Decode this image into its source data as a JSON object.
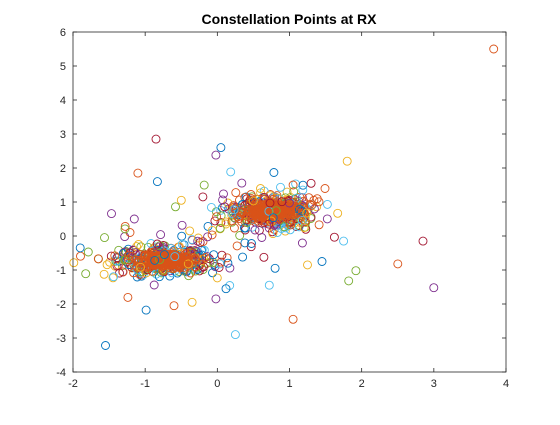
{
  "chart_data": {
    "type": "scatter",
    "title": "Constellation Points at RX",
    "xlabel": "",
    "ylabel": "",
    "xlim": [
      -2,
      4
    ],
    "ylim": [
      -4,
      6
    ],
    "xticks": [
      -2,
      -1,
      0,
      1,
      2,
      3,
      4
    ],
    "xtick_labels": [
      "-2",
      "-1",
      "0",
      "1",
      "2",
      "3",
      "4"
    ],
    "yticks": [
      -4,
      -3,
      -2,
      -1,
      0,
      1,
      2,
      3,
      4,
      5,
      6
    ],
    "ytick_labels": [
      "-4",
      "-3",
      "-2",
      "-1",
      "0",
      "1",
      "2",
      "3",
      "4",
      "5",
      "6"
    ],
    "grid": false,
    "marker": "open-circle",
    "series_colors": [
      "#0072bd",
      "#d95319",
      "#edb120",
      "#7e2f8e",
      "#77ac30",
      "#4dbeee",
      "#a2142f"
    ],
    "clusters": [
      {
        "center": [
          -0.72,
          -0.72
        ],
        "spread": [
          0.32,
          0.2
        ]
      },
      {
        "center": [
          0.72,
          0.72
        ],
        "spread": [
          0.3,
          0.25
        ]
      }
    ],
    "outliers": [
      {
        "x": 3.83,
        "y": 5.5,
        "color": "#d95319"
      },
      {
        "x": -0.85,
        "y": 2.85,
        "color": "#a2142f"
      },
      {
        "x": -1.55,
        "y": -3.22,
        "color": "#0072bd"
      },
      {
        "x": -1.9,
        "y": -0.35,
        "color": "#0072bd"
      },
      {
        "x": 0.25,
        "y": -2.9,
        "color": "#4dbeee"
      },
      {
        "x": 1.05,
        "y": -2.45,
        "color": "#d95319"
      },
      {
        "x": 3.0,
        "y": -1.52,
        "color": "#7e2f8e"
      },
      {
        "x": 2.85,
        "y": -0.15,
        "color": "#a2142f"
      },
      {
        "x": 2.5,
        "y": -0.82,
        "color": "#d95319"
      },
      {
        "x": 1.92,
        "y": -1.02,
        "color": "#77ac30"
      },
      {
        "x": 1.82,
        "y": -1.32,
        "color": "#77ac30"
      },
      {
        "x": 1.8,
        "y": 2.2,
        "color": "#edb120"
      },
      {
        "x": 0.05,
        "y": 2.6,
        "color": "#0072bd"
      },
      {
        "x": -0.02,
        "y": 2.38,
        "color": "#7e2f8e"
      },
      {
        "x": -0.6,
        "y": -2.05,
        "color": "#d95319"
      },
      {
        "x": -0.35,
        "y": -1.95,
        "color": "#edb120"
      },
      {
        "x": 0.12,
        "y": -1.55,
        "color": "#0072bd"
      },
      {
        "x": -0.02,
        "y": -1.85,
        "color": "#7e2f8e"
      },
      {
        "x": -1.1,
        "y": 1.85,
        "color": "#d95319"
      },
      {
        "x": -1.15,
        "y": 0.5,
        "color": "#7e2f8e"
      },
      {
        "x": 1.25,
        "y": -0.85,
        "color": "#edb120"
      },
      {
        "x": 1.45,
        "y": -0.75,
        "color": "#0072bd"
      },
      {
        "x": 1.05,
        "y": 1.5,
        "color": "#d95319"
      },
      {
        "x": 1.3,
        "y": 1.55,
        "color": "#a2142f"
      },
      {
        "x": 1.75,
        "y": -0.15,
        "color": "#4dbeee"
      },
      {
        "x": -0.05,
        "y": -0.55,
        "color": "#0072bd"
      },
      {
        "x": 0.35,
        "y": -0.62,
        "color": "#0072bd"
      },
      {
        "x": 0.8,
        "y": -0.95,
        "color": "#0072bd"
      },
      {
        "x": -0.5,
        "y": 1.05,
        "color": "#edb120"
      },
      {
        "x": -0.2,
        "y": 1.15,
        "color": "#a2142f"
      }
    ]
  }
}
